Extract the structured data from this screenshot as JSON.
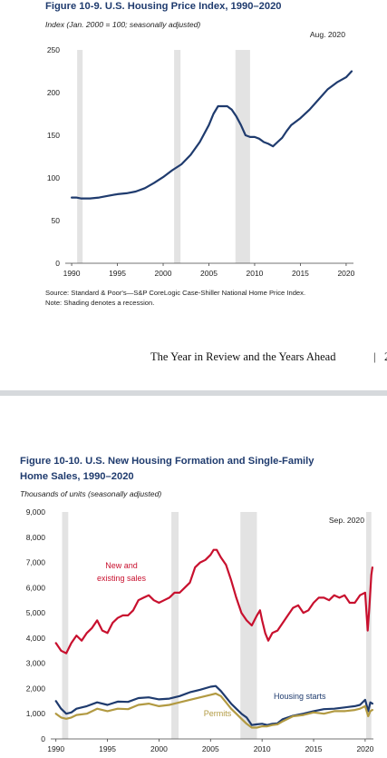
{
  "page": {
    "running_header": "The Year in Review and the Years Ahead",
    "running_bar": "|",
    "running_page": "2"
  },
  "chart_data": [
    {
      "type": "line",
      "title": "Figure 10-9. U.S. Housing Price Index, 1990–2020",
      "subtitle": "Index (Jan. 2000 = 100; seasonally adjusted)",
      "annotation": "Aug. 2020",
      "xlabel": "",
      "ylabel": "",
      "xlim": [
        1989.3,
        2020.8
      ],
      "ylim": [
        0,
        250
      ],
      "x_ticks": [
        1990,
        1995,
        2000,
        2005,
        2010,
        2015,
        2020
      ],
      "y_ticks": [
        0,
        50,
        100,
        150,
        200,
        250
      ],
      "recessions": [
        [
          1990.6,
          1991.2
        ],
        [
          2001.2,
          2001.9
        ],
        [
          2007.9,
          2009.5
        ]
      ],
      "grid": false,
      "color": "#1f3b6e",
      "source": "Source: Standard & Poor's—S&P CoreLogic Case-Shiller National Home Price Index.",
      "note": "Note:  Shading denotes a recession.",
      "series": [
        {
          "x": [
            1990.0,
            1990.5,
            1991.0,
            1991.5,
            1992.0,
            1992.5,
            1993.0,
            1994.0,
            1995.0,
            1996.0,
            1997.0,
            1998.0,
            1999.0,
            2000.0,
            2001.0,
            2002.0,
            2003.0,
            2004.0,
            2005.0,
            2005.5,
            2006.0,
            2006.5,
            2007.0,
            2007.5,
            2008.0,
            2008.5,
            2009.0,
            2009.5,
            2010.0,
            2010.5,
            2011.0,
            2011.5,
            2012.0,
            2012.5,
            2013.0,
            2013.5,
            2014.0,
            2015.0,
            2016.0,
            2017.0,
            2018.0,
            2019.0,
            2020.0,
            2020.6
          ],
          "values": [
            77,
            77,
            76,
            76,
            76,
            76.5,
            77,
            79,
            81,
            82,
            84,
            88,
            94,
            101,
            109,
            116,
            127,
            142,
            162,
            175,
            184,
            184,
            184,
            180,
            172,
            162,
            150,
            148,
            148,
            146,
            142,
            140,
            137,
            142,
            147,
            155,
            162,
            170,
            180,
            192,
            204,
            212,
            218,
            225
          ]
        }
      ]
    },
    {
      "type": "line",
      "title_line1": "Figure 10-10. U.S. New Housing Formation and Single-Family",
      "title_line2": "Home Sales, 1990–2020",
      "subtitle": "Thousands of units (seasonally adjusted)",
      "annotation": "Sep. 2020",
      "xlabel": "",
      "ylabel": "",
      "xlim": [
        1989.5,
        2020.8
      ],
      "ylim": [
        0,
        9000
      ],
      "x_ticks": [
        1990,
        1995,
        2000,
        2005,
        2010,
        2015,
        2020
      ],
      "y_ticks": [
        0,
        1000,
        2000,
        3000,
        4000,
        5000,
        6000,
        7000,
        8000,
        9000
      ],
      "recessions": [
        [
          1990.6,
          1991.2
        ],
        [
          2001.2,
          2001.9
        ],
        [
          2007.9,
          2009.5
        ],
        [
          2020.1,
          2020.6
        ]
      ],
      "grid": false,
      "series": [
        {
          "name": "New and existing sales",
          "label_line1": "New and",
          "label_line2": "existing sales",
          "color": "#c8102e",
          "x": [
            1990.0,
            1990.5,
            1991.0,
            1991.5,
            1992.0,
            1992.5,
            1993.0,
            1993.5,
            1994.0,
            1994.5,
            1995.0,
            1995.5,
            1996.0,
            1996.5,
            1997.0,
            1997.5,
            1998.0,
            1998.5,
            1999.0,
            1999.5,
            2000.0,
            2000.5,
            2001.0,
            2001.5,
            2002.0,
            2002.5,
            2003.0,
            2003.5,
            2004.0,
            2004.5,
            2005.0,
            2005.3,
            2005.6,
            2006.0,
            2006.5,
            2007.0,
            2007.5,
            2008.0,
            2008.5,
            2009.0,
            2009.5,
            2009.8,
            2010.0,
            2010.3,
            2010.6,
            2011.0,
            2011.5,
            2012.0,
            2012.5,
            2013.0,
            2013.5,
            2014.0,
            2014.5,
            2015.0,
            2015.5,
            2016.0,
            2016.5,
            2017.0,
            2017.5,
            2018.0,
            2018.5,
            2019.0,
            2019.5,
            2020.0,
            2020.25,
            2020.4,
            2020.6,
            2020.7
          ],
          "values": [
            3800,
            3500,
            3400,
            3800,
            4100,
            3900,
            4200,
            4400,
            4700,
            4300,
            4200,
            4600,
            4800,
            4900,
            4900,
            5100,
            5500,
            5600,
            5700,
            5500,
            5400,
            5500,
            5600,
            5800,
            5800,
            6000,
            6200,
            6800,
            7000,
            7100,
            7300,
            7500,
            7500,
            7200,
            6900,
            6300,
            5600,
            5000,
            4700,
            4500,
            4900,
            5100,
            4700,
            4200,
            3900,
            4200,
            4300,
            4600,
            4900,
            5200,
            5300,
            5000,
            5100,
            5400,
            5600,
            5600,
            5500,
            5700,
            5600,
            5700,
            5400,
            5400,
            5700,
            5800,
            4300,
            5200,
            6500,
            6800
          ]
        },
        {
          "name": "Housing starts",
          "label": "Housing starts",
          "color": "#1f3b6e",
          "x": [
            1990.0,
            1990.5,
            1991.0,
            1991.5,
            1992.0,
            1993.0,
            1994.0,
            1995.0,
            1996.0,
            1997.0,
            1998.0,
            1999.0,
            2000.0,
            2001.0,
            2002.0,
            2003.0,
            2004.0,
            2005.0,
            2005.5,
            2006.0,
            2006.5,
            2007.0,
            2007.5,
            2008.0,
            2008.5,
            2009.0,
            2009.5,
            2010.0,
            2010.5,
            2011.0,
            2011.5,
            2012.0,
            2013.0,
            2014.0,
            2015.0,
            2016.0,
            2017.0,
            2018.0,
            2019.0,
            2019.5,
            2020.0,
            2020.3,
            2020.5,
            2020.7
          ],
          "values": [
            1500,
            1200,
            1000,
            1050,
            1200,
            1300,
            1450,
            1350,
            1480,
            1470,
            1620,
            1650,
            1570,
            1600,
            1700,
            1850,
            1950,
            2070,
            2100,
            1900,
            1650,
            1400,
            1200,
            1000,
            850,
            550,
            580,
            600,
            550,
            600,
            620,
            780,
            920,
            1000,
            1100,
            1180,
            1200,
            1250,
            1300,
            1350,
            1550,
            1100,
            1450,
            1400
          ]
        },
        {
          "name": "Permits",
          "label": "Permits",
          "color": "#b29a42",
          "x": [
            1990.0,
            1990.5,
            1991.0,
            1991.5,
            1992.0,
            1993.0,
            1994.0,
            1995.0,
            1996.0,
            1997.0,
            1998.0,
            1999.0,
            2000.0,
            2001.0,
            2002.0,
            2003.0,
            2004.0,
            2005.0,
            2005.5,
            2006.0,
            2006.5,
            2007.0,
            2007.5,
            2008.0,
            2008.5,
            2009.0,
            2009.5,
            2010.0,
            2010.5,
            2011.0,
            2011.5,
            2012.0,
            2013.0,
            2014.0,
            2015.0,
            2016.0,
            2017.0,
            2018.0,
            2019.0,
            2019.5,
            2020.0,
            2020.3,
            2020.5,
            2020.7
          ],
          "values": [
            1000,
            850,
            800,
            850,
            950,
            1000,
            1200,
            1100,
            1200,
            1180,
            1350,
            1400,
            1300,
            1350,
            1450,
            1550,
            1650,
            1750,
            1800,
            1700,
            1450,
            1200,
            1000,
            800,
            600,
            450,
            450,
            500,
            500,
            550,
            580,
            700,
            900,
            950,
            1050,
            1000,
            1100,
            1100,
            1150,
            1200,
            1300,
            900,
            1100,
            1150
          ]
        }
      ]
    }
  ]
}
